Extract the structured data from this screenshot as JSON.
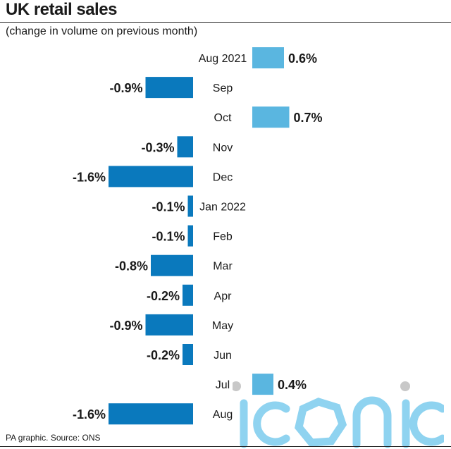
{
  "header": {
    "title": "UK retail sales",
    "subtitle": "(change in volume on previous month)"
  },
  "footer": {
    "source": "PA graphic. Source: ONS"
  },
  "watermark": {
    "text": "iconic"
  },
  "colors": {
    "positive": "#5ab6e0",
    "negative": "#0a79bd",
    "watermark": "#8fd3f0",
    "watermark_dot": "#c8c8c8"
  },
  "chart_data": {
    "type": "bar",
    "orientation": "horizontal",
    "title": "UK retail sales",
    "subtitle": "(change in volume on previous month)",
    "categories": [
      "Aug 2021",
      "Sep",
      "Oct",
      "Nov",
      "Dec",
      "Jan 2022",
      "Feb",
      "Mar",
      "Apr",
      "May",
      "Jun",
      "Jul",
      "Aug"
    ],
    "values": [
      0.6,
      -0.9,
      0.7,
      -0.3,
      -1.6,
      -0.1,
      -0.1,
      -0.8,
      -0.2,
      -0.9,
      -0.2,
      0.4,
      -1.6
    ],
    "value_labels": [
      "0.6%",
      "-0.9%",
      "0.7%",
      "-0.3%",
      "-1.6%",
      "-0.1%",
      "-0.1%",
      "-0.8%",
      "-0.2%",
      "-0.9%",
      "-0.2%",
      "0.4%",
      "-1.6%"
    ],
    "unit": "%",
    "grid": false,
    "legend": "none"
  }
}
